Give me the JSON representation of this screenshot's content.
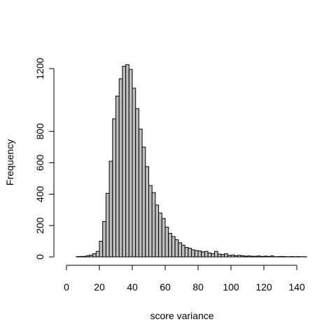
{
  "chart_data": {
    "type": "histogram",
    "xlabel": "score variance",
    "ylabel": "Frequency",
    "bins": [
      6,
      8,
      10,
      12,
      14,
      16,
      18,
      20,
      22,
      24,
      26,
      28,
      30,
      32,
      34,
      36,
      38,
      40,
      42,
      44,
      46,
      48,
      50,
      52,
      54,
      56,
      58,
      60,
      62,
      64,
      66,
      68,
      70,
      72,
      74,
      76,
      78,
      80,
      82,
      84,
      86,
      88,
      90,
      92,
      94,
      96,
      98,
      100,
      102,
      104,
      106,
      108,
      110,
      112,
      114,
      116,
      118,
      120,
      122,
      124,
      126,
      128,
      130,
      132,
      134,
      136,
      138,
      140,
      142,
      144,
      146
    ],
    "values": [
      2,
      3,
      3,
      8,
      12,
      20,
      35,
      100,
      225,
      405,
      610,
      880,
      1025,
      1135,
      1215,
      1225,
      1195,
      1075,
      945,
      815,
      700,
      575,
      455,
      410,
      330,
      280,
      245,
      190,
      150,
      130,
      110,
      90,
      75,
      60,
      55,
      45,
      40,
      38,
      32,
      35,
      25,
      20,
      35,
      18,
      15,
      20,
      10,
      12,
      8,
      10,
      8,
      5,
      6,
      4,
      4,
      6,
      3,
      5,
      3,
      6,
      1,
      2,
      3,
      2,
      1,
      2,
      1,
      2,
      1,
      1
    ],
    "color": "#bebebe",
    "xlim": [
      0,
      140
    ],
    "xticks": [
      0,
      20,
      40,
      60,
      80,
      100,
      120,
      140
    ],
    "ylim": [
      0,
      1200
    ],
    "yticks": [
      0,
      200,
      400,
      600,
      800,
      1200
    ]
  }
}
